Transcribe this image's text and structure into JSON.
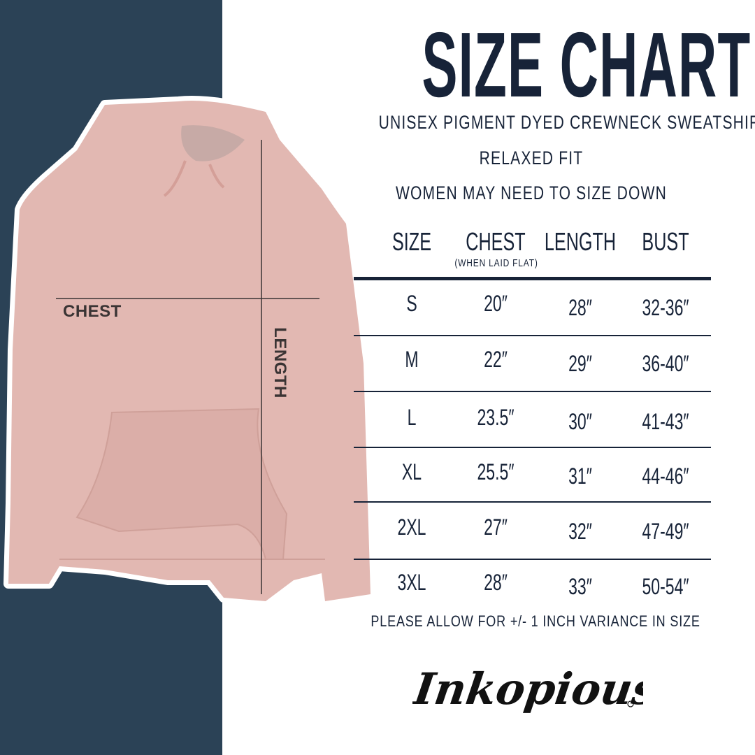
{
  "header": {
    "title": "SIZE CHART",
    "product": "UNISEX PIGMENT DYED CREWNECK SWEATSHIRT",
    "fit": "RELAXED FIT",
    "advice": "WOMEN MAY NEED TO SIZE DOWN"
  },
  "image_labels": {
    "chest": "CHEST",
    "length": "LENGTH"
  },
  "table": {
    "columns": [
      "SIZE",
      "CHEST",
      "LENGTH",
      "BUST"
    ],
    "chest_note": "(WHEN LAID FLAT)",
    "rows": [
      [
        "S",
        "20″",
        "28″",
        "32-36″"
      ],
      [
        "M",
        "22″",
        "29″",
        "36-40″"
      ],
      [
        "L",
        "23.5″",
        "30″",
        "41-43″"
      ],
      [
        "XL",
        "25.5″",
        "31″",
        "44-46″"
      ],
      [
        "2XL",
        "27″",
        "32″",
        "47-49″"
      ],
      [
        "3XL",
        "28″",
        "33″",
        "50-54″"
      ]
    ]
  },
  "footer": {
    "variance_note": "PLEASE ALLOW FOR +/- 1 INCH VARIANCE IN SIZE"
  },
  "brand": {
    "logo_text": "Inkopious"
  },
  "colors": {
    "panel": "#2b4256",
    "text": "#172338",
    "garment": "#e2b8b2"
  }
}
